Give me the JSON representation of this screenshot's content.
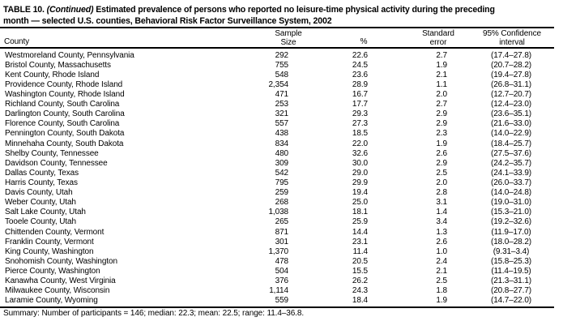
{
  "page": {
    "title": {
      "prefix": "TABLE 10.",
      "continued": "(Continued)",
      "rest_line1": "Estimated prevalence of persons who reported no leisure-time physical activity during the preceding",
      "rest_line2": "month — selected U.S. counties, Behavioral Risk Factor Surveillance System, 2002"
    },
    "headers": {
      "county": "County",
      "sample_line1": "Sample",
      "sample_line2": "Size",
      "percent": "%",
      "se_line1": "Standard",
      "se_line2": "error",
      "ci_line1": "95% Confidence",
      "ci_line2": "interval"
    },
    "rows": [
      {
        "county": "Westmoreland County, Pennsylvania",
        "sample": "292",
        "percent": "22.6",
        "se": "2.7",
        "ci": "(17.4–27.8)"
      },
      {
        "county": "Bristol County, Massachusetts",
        "sample": "755",
        "percent": "24.5",
        "se": "1.9",
        "ci": "(20.7–28.2)"
      },
      {
        "county": "Kent County, Rhode Island",
        "sample": "548",
        "percent": "23.6",
        "se": "2.1",
        "ci": "(19.4–27.8)"
      },
      {
        "county": "Providence County, Rhode Island",
        "sample": "2,354",
        "percent": "28.9",
        "se": "1.1",
        "ci": "(26.8–31.1)"
      },
      {
        "county": "Washington County, Rhode Island",
        "sample": "471",
        "percent": "16.7",
        "se": "2.0",
        "ci": "(12.7–20.7)"
      },
      {
        "county": "Richland County, South Carolina",
        "sample": "253",
        "percent": "17.7",
        "se": "2.7",
        "ci": "(12.4–23.0)"
      },
      {
        "county": "Darlington County, South Carolina",
        "sample": "321",
        "percent": "29.3",
        "se": "2.9",
        "ci": "(23.6–35.1)"
      },
      {
        "county": "Florence County, South Carolina",
        "sample": "557",
        "percent": "27.3",
        "se": "2.9",
        "ci": "(21.6–33.0)"
      },
      {
        "county": "Pennington County, South Dakota",
        "sample": "438",
        "percent": "18.5",
        "se": "2.3",
        "ci": "(14.0–22.9)"
      },
      {
        "county": "Minnehaha County, South Dakota",
        "sample": "834",
        "percent": "22.0",
        "se": "1.9",
        "ci": "(18.4–25.7)"
      },
      {
        "county": "Shelby County, Tennessee",
        "sample": "480",
        "percent": "32.6",
        "se": "2.6",
        "ci": "(27.5–37.6)"
      },
      {
        "county": "Davidson County, Tennessee",
        "sample": "309",
        "percent": "30.0",
        "se": "2.9",
        "ci": "(24.2–35.7)"
      },
      {
        "county": "Dallas County, Texas",
        "sample": "542",
        "percent": "29.0",
        "se": "2.5",
        "ci": "(24.1–33.9)"
      },
      {
        "county": "Harris County, Texas",
        "sample": "795",
        "percent": "29.9",
        "se": "2.0",
        "ci": "(26.0–33.7)"
      },
      {
        "county": "Davis County, Utah",
        "sample": "259",
        "percent": "19.4",
        "se": "2.8",
        "ci": "(14.0–24.8)"
      },
      {
        "county": "Weber County, Utah",
        "sample": "268",
        "percent": "25.0",
        "se": "3.1",
        "ci": "(19.0–31.0)"
      },
      {
        "county": "Salt Lake County, Utah",
        "sample": "1,038",
        "percent": "18.1",
        "se": "1.4",
        "ci": "(15.3–21.0)"
      },
      {
        "county": "Tooele County, Utah",
        "sample": "265",
        "percent": "25.9",
        "se": "3.4",
        "ci": "(19.2–32.6)"
      },
      {
        "county": "Chittenden County, Vermont",
        "sample": "871",
        "percent": "14.4",
        "se": "1.3",
        "ci": "(11.9–17.0)"
      },
      {
        "county": "Franklin County, Vermont",
        "sample": "301",
        "percent": "23.1",
        "se": "2.6",
        "ci": "(18.0–28.2)"
      },
      {
        "county": "King County, Washington",
        "sample": "1,370",
        "percent": "11.4",
        "se": "1.0",
        "ci": "(9.31–3.4)"
      },
      {
        "county": "Snohomish County, Washington",
        "sample": "478",
        "percent": "20.5",
        "se": "2.4",
        "ci": "(15.8–25.3)"
      },
      {
        "county": "Pierce County, Washington",
        "sample": "504",
        "percent": "15.5",
        "se": "2.1",
        "ci": "(11.4–19.5)"
      },
      {
        "county": "Kanawha County, West Virginia",
        "sample": "376",
        "percent": "26.2",
        "se": "2.5",
        "ci": "(21.3–31.1)"
      },
      {
        "county": "Milwaukee County, Wisconsin",
        "sample": "1,114",
        "percent": "24.3",
        "se": "1.8",
        "ci": "(20.8–27.7)"
      },
      {
        "county": "Laramie County, Wyoming",
        "sample": "559",
        "percent": "18.4",
        "se": "1.9",
        "ci": "(14.7–22.0)"
      }
    ],
    "summary": "Summary: Number of participants = 146; median: 22.3; mean: 22.5; range: 11.4–36.8."
  }
}
